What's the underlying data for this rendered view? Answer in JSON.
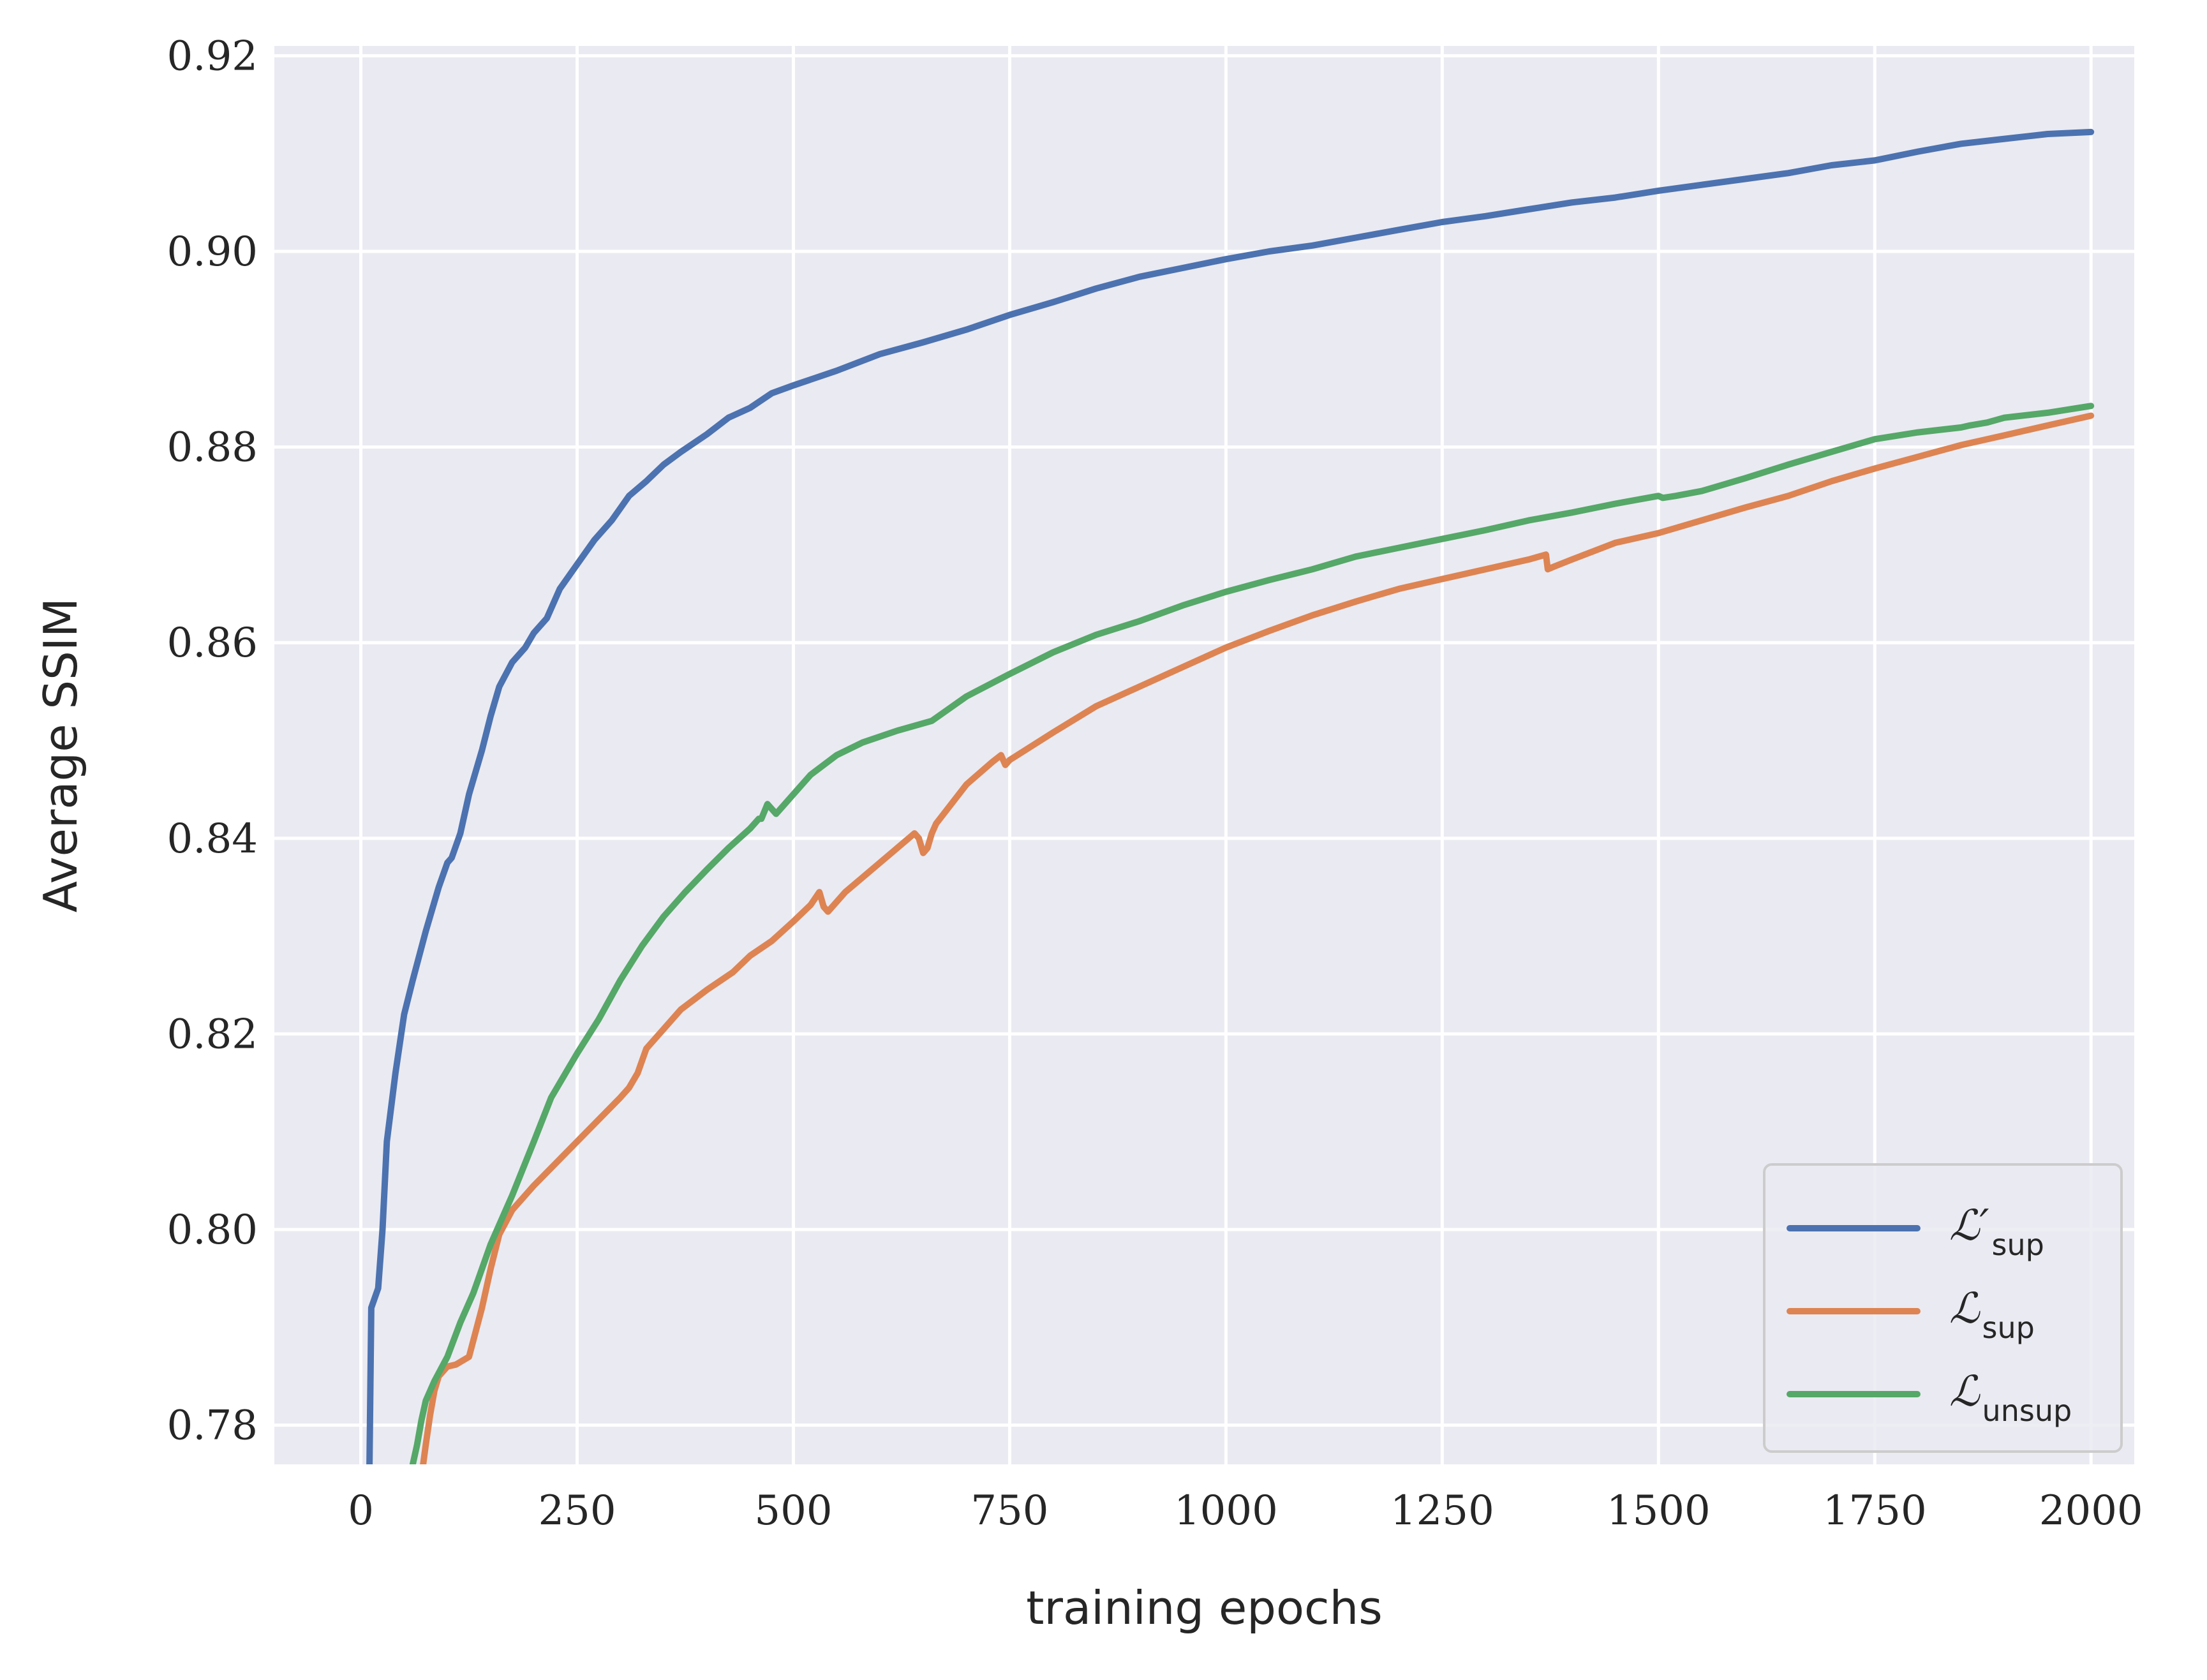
{
  "chart_data": {
    "type": "line",
    "title": "",
    "xlabel": "training epochs",
    "ylabel": "Average SSIM",
    "xlim": [
      -100,
      2050
    ],
    "ylim": [
      0.776,
      0.921
    ],
    "xticks": [
      0,
      250,
      500,
      750,
      1000,
      1250,
      1500,
      1750,
      2000
    ],
    "xtick_labels": [
      "0",
      "250",
      "500",
      "750",
      "1000",
      "1250",
      "1500",
      "1750",
      "2000"
    ],
    "yticks": [
      0.78,
      0.8,
      0.82,
      0.84,
      0.86,
      0.88,
      0.9,
      0.92
    ],
    "ytick_labels": [
      "0.78",
      "0.80",
      "0.82",
      "0.84",
      "0.86",
      "0.88",
      "0.90",
      "0.92"
    ],
    "grid": true,
    "background": "#EAEAF2",
    "legend_position": "lower-right",
    "series": [
      {
        "name": "L'sup",
        "legend_main": "ℒ′",
        "legend_sub": "sup",
        "color": "#4C72B0",
        "x": [
          10,
          12,
          20,
          25,
          30,
          40,
          50,
          60,
          75,
          90,
          100,
          105,
          115,
          125,
          140,
          150,
          160,
          175,
          190,
          200,
          215,
          230,
          250,
          270,
          290,
          310,
          330,
          350,
          370,
          400,
          425,
          450,
          475,
          500,
          550,
          600,
          650,
          700,
          750,
          800,
          850,
          900,
          950,
          1000,
          1050,
          1100,
          1150,
          1200,
          1250,
          1300,
          1350,
          1400,
          1450,
          1500,
          1550,
          1600,
          1650,
          1700,
          1750,
          1800,
          1850,
          1900,
          1950,
          2000
        ],
        "y": [
          0.776,
          0.792,
          0.794,
          0.8,
          0.809,
          0.816,
          0.822,
          0.8255,
          0.8305,
          0.835,
          0.8375,
          0.838,
          0.8405,
          0.8445,
          0.849,
          0.8525,
          0.8555,
          0.858,
          0.8595,
          0.861,
          0.8625,
          0.8655,
          0.868,
          0.8705,
          0.8725,
          0.875,
          0.8765,
          0.8782,
          0.8795,
          0.8813,
          0.883,
          0.884,
          0.8855,
          0.8863,
          0.8878,
          0.8895,
          0.8907,
          0.892,
          0.8935,
          0.8948,
          0.8962,
          0.8974,
          0.8983,
          0.8992,
          0.9,
          0.9006,
          0.9014,
          0.9022,
          0.903,
          0.9036,
          0.9043,
          0.905,
          0.9055,
          0.9062,
          0.9068,
          0.9074,
          0.908,
          0.9088,
          0.9093,
          0.9102,
          0.911,
          0.9115,
          0.912,
          0.9122
        ]
      },
      {
        "name": "Lsup",
        "legend_main": "ℒ",
        "legend_sub": "sup",
        "color": "#DD8452",
        "x": [
          72,
          75,
          80,
          85,
          90,
          100,
          110,
          125,
          140,
          150,
          160,
          175,
          200,
          250,
          300,
          310,
          320,
          330,
          350,
          370,
          400,
          430,
          450,
          475,
          500,
          520,
          530,
          535,
          540,
          560,
          580,
          600,
          620,
          640,
          645,
          650,
          655,
          660,
          665,
          700,
          730,
          740,
          745,
          750,
          800,
          850,
          900,
          950,
          1000,
          1050,
          1100,
          1150,
          1200,
          1250,
          1300,
          1350,
          1370,
          1372,
          1380,
          1400,
          1450,
          1500,
          1550,
          1600,
          1650,
          1700,
          1750,
          1800,
          1850,
          1900,
          1950,
          2000
        ],
        "y": [
          0.776,
          0.778,
          0.781,
          0.7835,
          0.785,
          0.786,
          0.7862,
          0.787,
          0.792,
          0.796,
          0.7995,
          0.802,
          0.8045,
          0.809,
          0.8135,
          0.8145,
          0.816,
          0.8185,
          0.8205,
          0.8225,
          0.8245,
          0.8263,
          0.828,
          0.8295,
          0.8315,
          0.8332,
          0.8345,
          0.833,
          0.8325,
          0.8345,
          0.836,
          0.8375,
          0.839,
          0.8405,
          0.84,
          0.8385,
          0.839,
          0.8405,
          0.8415,
          0.8455,
          0.8478,
          0.8485,
          0.8475,
          0.848,
          0.8508,
          0.8535,
          0.8555,
          0.8575,
          0.8595,
          0.8612,
          0.8628,
          0.8642,
          0.8655,
          0.8665,
          0.8675,
          0.8685,
          0.869,
          0.8675,
          0.8678,
          0.8685,
          0.8702,
          0.8712,
          0.8725,
          0.8738,
          0.875,
          0.8765,
          0.8778,
          0.879,
          0.8802,
          0.8812,
          0.8822,
          0.8832
        ]
      },
      {
        "name": "Lunsup",
        "legend_main": "ℒ",
        "legend_sub": "unsup",
        "color": "#55A868",
        "x": [
          60,
          65,
          70,
          75,
          85,
          100,
          115,
          130,
          150,
          175,
          200,
          220,
          250,
          275,
          300,
          325,
          350,
          375,
          400,
          425,
          450,
          460,
          463,
          470,
          480,
          500,
          520,
          550,
          580,
          620,
          660,
          700,
          750,
          800,
          850,
          900,
          950,
          1000,
          1050,
          1100,
          1150,
          1200,
          1250,
          1300,
          1350,
          1400,
          1450,
          1500,
          1505,
          1520,
          1550,
          1600,
          1650,
          1700,
          1750,
          1800,
          1850,
          1860,
          1880,
          1900,
          1950,
          2000
        ],
        "y": [
          0.776,
          0.778,
          0.7805,
          0.7825,
          0.7845,
          0.787,
          0.7905,
          0.7935,
          0.7985,
          0.8035,
          0.809,
          0.8135,
          0.818,
          0.8215,
          0.8255,
          0.829,
          0.832,
          0.8345,
          0.8368,
          0.839,
          0.841,
          0.842,
          0.842,
          0.8435,
          0.8425,
          0.8445,
          0.8465,
          0.8485,
          0.8498,
          0.851,
          0.852,
          0.8545,
          0.8568,
          0.859,
          0.8608,
          0.8622,
          0.8638,
          0.8652,
          0.8664,
          0.8675,
          0.8688,
          0.8697,
          0.8706,
          0.8715,
          0.8725,
          0.8733,
          0.8742,
          0.875,
          0.8748,
          0.875,
          0.8755,
          0.8768,
          0.8782,
          0.8795,
          0.8808,
          0.8815,
          0.882,
          0.8822,
          0.8825,
          0.883,
          0.8835,
          0.8842
        ]
      }
    ]
  }
}
